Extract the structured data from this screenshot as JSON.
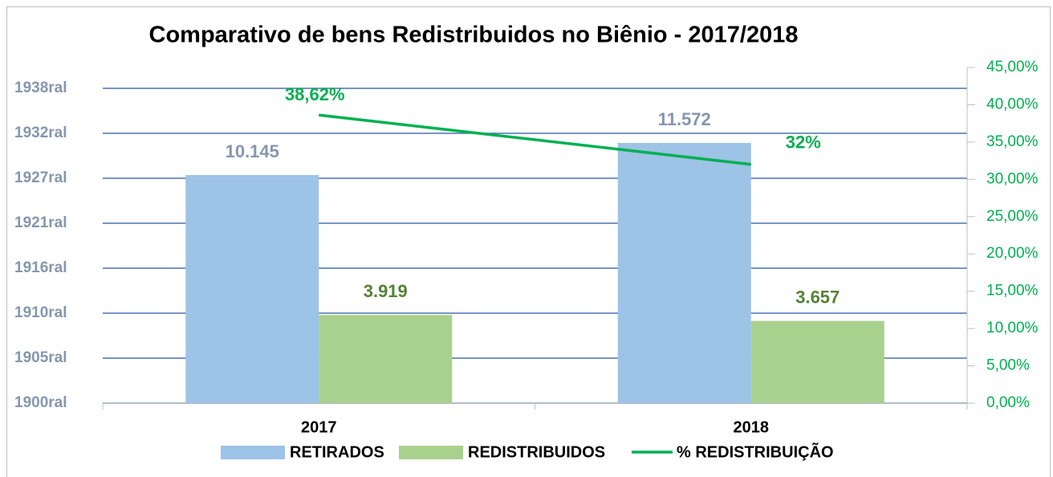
{
  "chart_data": {
    "type": "bar",
    "title": "Comparativo de bens Redistribuidos no Biênio - 2017/2018",
    "categories": [
      "2017",
      "2018"
    ],
    "series": [
      {
        "name": "RETIRADOS",
        "color": "#9dc3e6",
        "values": [
          10145,
          11572
        ],
        "value_labels": [
          "10.145",
          "11.572"
        ],
        "label_color": "#8496b0"
      },
      {
        "name": "REDISTRIBUIDOS",
        "color": "#a9d18e",
        "values": [
          3919,
          3657
        ],
        "value_labels": [
          "3.919",
          "3.657"
        ],
        "label_color": "#548235"
      },
      {
        "name": "% REDISTRIBUIÇÃO",
        "type": "line",
        "axis": "y2",
        "color": "#00b050",
        "values": [
          38.62,
          32
        ],
        "value_labels": [
          "38,62%",
          "32%"
        ],
        "label_color": "#00b050"
      }
    ],
    "ylim": [
      0,
      14000
    ],
    "yticks": [
      {
        "value": 0,
        "label": "1900ral"
      },
      {
        "value": 2000,
        "label": "1905ral"
      },
      {
        "value": 4000,
        "label": "1910ral"
      },
      {
        "value": 6000,
        "label": "1916ral"
      },
      {
        "value": 8000,
        "label": "1921ral"
      },
      {
        "value": 10000,
        "label": "1927ral"
      },
      {
        "value": 12000,
        "label": "1932ral"
      },
      {
        "value": 14000,
        "label": "1938ral"
      }
    ],
    "y2lim": [
      0,
      45
    ],
    "y2ticks": [
      {
        "value": 0,
        "label": "0,00%"
      },
      {
        "value": 5,
        "label": "5,00%"
      },
      {
        "value": 10,
        "label": "10,00%"
      },
      {
        "value": 15,
        "label": "15,00%"
      },
      {
        "value": 20,
        "label": "20,00%"
      },
      {
        "value": 25,
        "label": "25,00%"
      },
      {
        "value": 30,
        "label": "30,00%"
      },
      {
        "value": 35,
        "label": "35,00%"
      },
      {
        "value": 40,
        "label": "40,00%"
      },
      {
        "value": 45,
        "label": "45,00%"
      }
    ],
    "grid": true,
    "legend": "bottom"
  }
}
